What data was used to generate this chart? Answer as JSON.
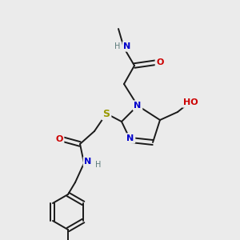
{
  "background_color": "#ebebeb",
  "figsize": [
    3.0,
    3.0
  ],
  "dpi": 100,
  "bond_color": "#1a1a1a",
  "bond_lw": 1.4,
  "atom_bg": "#ebebeb",
  "colors": {
    "N": "#0000cc",
    "O": "#cc0000",
    "S": "#999900",
    "H": "#5a7a7a",
    "C": "#1a1a1a"
  }
}
